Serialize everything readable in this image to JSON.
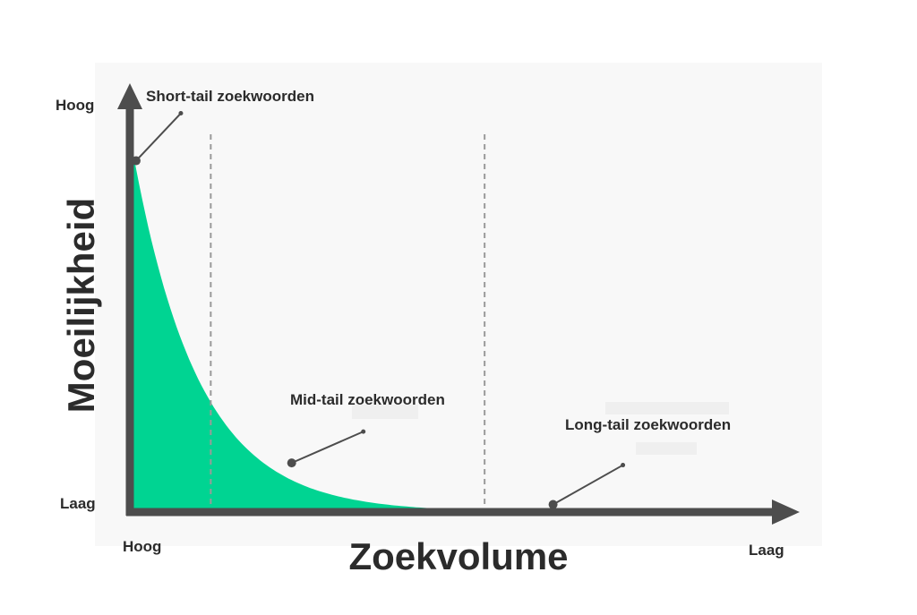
{
  "chart_data": {
    "type": "area",
    "xlabel": "Zoekvolume",
    "ylabel": "Moeilijkheid",
    "x_tick_labels": {
      "start": "Hoog",
      "end": "Laag"
    },
    "y_tick_labels": {
      "top": "Hoog",
      "bottom": "Laag"
    },
    "grid": false,
    "colors": {
      "fill": "#00d492",
      "axis": "#4d4d4d",
      "dashed": "#9a9a9a",
      "plot_bg": "#f8f8f8",
      "text": "#2b2b2b"
    },
    "segment_boundaries": [
      0.13,
      0.57
    ],
    "annotations": [
      {
        "label": "Short-tail zoekwoorden",
        "x": 0.01,
        "y": 0.93
      },
      {
        "label": "Mid-tail zoekwoorden",
        "x": 0.26,
        "y": 0.13
      },
      {
        "label": "Long-tail zoekwoorden",
        "x": 0.68,
        "y": 0.02
      }
    ]
  }
}
